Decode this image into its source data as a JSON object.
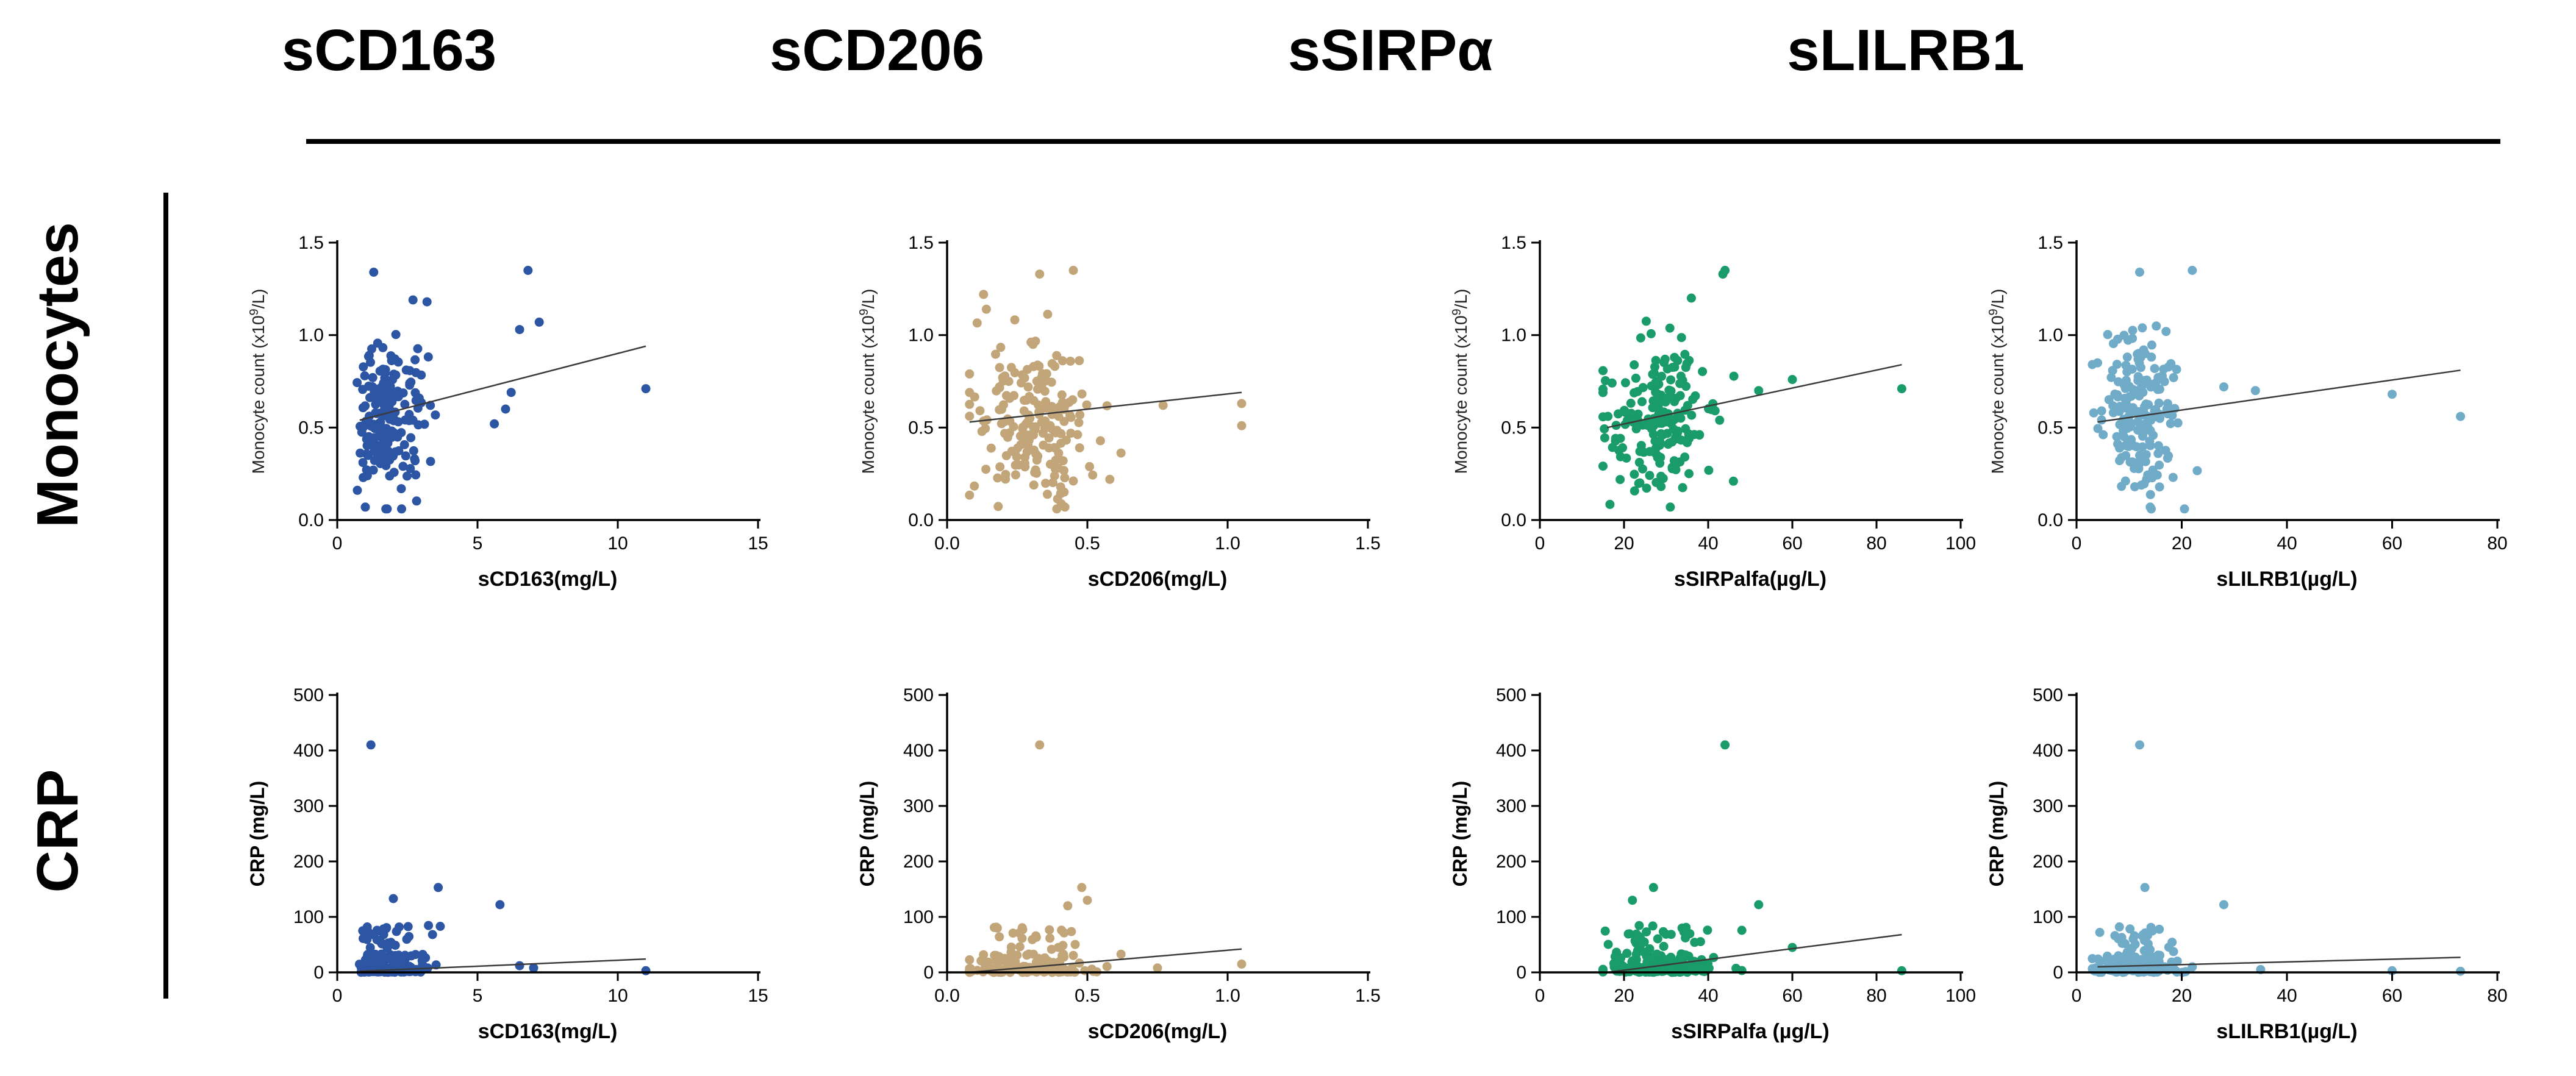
{
  "columns": [
    "sCD163",
    "sCD206",
    "sSIRPα",
    "sLILRB1"
  ],
  "rows": [
    "Monocytes",
    "CRP"
  ],
  "chart_data": [
    {
      "id": "p11",
      "type": "scatter",
      "row": 0,
      "col": 0,
      "color": "#2c55a4",
      "xlabel": "sCD163(mg/L)",
      "ylabel": "Monocyte count (x10⁹/L)",
      "ylabel_base": "Monocyte count (x10",
      "ylabel_sup": "9",
      "ylabel_tail": "/L)",
      "xlim": [
        0,
        15
      ],
      "xticks": [
        "0",
        "5",
        "10",
        "15"
      ],
      "ylim": [
        0,
        1.5
      ],
      "yticks": [
        "0.0",
        "0.5",
        "1.0",
        "1.5"
      ],
      "trend": [
        [
          0.8,
          0.54
        ],
        [
          11,
          0.94
        ]
      ],
      "seed": 11,
      "gen": {
        "xmode": "gamma",
        "xmean": 2.2,
        "xsd": 0.9,
        "xmin": 0.7,
        "xmax": 5.5,
        "ymean": 0.55,
        "ysd": 0.2,
        "ymin": 0.06,
        "ymax": 1.22
      },
      "points": [
        [
          6.8,
          1.35
        ],
        [
          1.3,
          1.34
        ],
        [
          7.2,
          1.07
        ],
        [
          6.5,
          1.03
        ],
        [
          11,
          0.71
        ],
        [
          6,
          0.6
        ],
        [
          5.6,
          0.52
        ],
        [
          6.2,
          0.69
        ],
        [
          1,
          0.07
        ],
        [
          2.7,
          1.19
        ],
        [
          3.2,
          1.18
        ]
      ]
    },
    {
      "id": "p12",
      "type": "scatter",
      "row": 0,
      "col": 1,
      "color": "#c2a67a",
      "xlabel": "sCD206(mg/L)",
      "ylabel": "Monocyte count (x10⁹/L)",
      "ylabel_base": "Monocyte count (x10",
      "ylabel_sup": "9",
      "ylabel_tail": "/L)",
      "xlim": [
        0,
        1.5
      ],
      "xticks": [
        "0.0",
        "0.5",
        "1.0",
        "1.5"
      ],
      "ylim": [
        0,
        1.5
      ],
      "yticks": [
        "0.0",
        "0.5",
        "1.0",
        "1.5"
      ],
      "trend": [
        [
          0.08,
          0.53
        ],
        [
          1.05,
          0.69
        ]
      ],
      "seed": 22,
      "gen": {
        "xmode": "normal",
        "xmean": 0.3,
        "xsd": 0.11,
        "xmin": 0.08,
        "xmax": 0.62,
        "ymean": 0.55,
        "ysd": 0.2,
        "ymin": 0.06,
        "ymax": 1.22
      },
      "points": [
        [
          0.45,
          1.35
        ],
        [
          0.33,
          1.33
        ],
        [
          1.05,
          0.51
        ],
        [
          1.05,
          0.63
        ],
        [
          0.77,
          0.62
        ],
        [
          0.58,
          0.22
        ],
        [
          0.42,
          0.07
        ],
        [
          0.13,
          1.22
        ],
        [
          0.14,
          1.14
        ]
      ]
    },
    {
      "id": "p13",
      "type": "scatter",
      "row": 0,
      "col": 2,
      "color": "#1a9b6a",
      "xlabel": "sSIRPalfa(µg/L)",
      "ylabel": "Monocyte count (x10⁹/L)",
      "ylabel_base": "Monocyte count (x10",
      "ylabel_sup": "9",
      "ylabel_tail": "/L)",
      "xlim": [
        0,
        100
      ],
      "xticks": [
        "0",
        "20",
        "40",
        "60",
        "80",
        "100"
      ],
      "ylim": [
        0,
        1.5
      ],
      "yticks": [
        "0.0",
        "0.5",
        "1.0",
        "1.5"
      ],
      "trend": [
        [
          16,
          0.5
        ],
        [
          86,
          0.84
        ]
      ],
      "seed": 33,
      "gen": {
        "xmode": "normal",
        "xmean": 28,
        "xsd": 6.5,
        "xmin": 15,
        "xmax": 48,
        "ymean": 0.55,
        "ysd": 0.2,
        "ymin": 0.06,
        "ymax": 1.22
      },
      "points": [
        [
          44,
          1.35
        ],
        [
          43.5,
          1.33
        ],
        [
          86,
          0.71
        ],
        [
          60,
          0.76
        ],
        [
          52,
          0.7
        ],
        [
          46,
          0.21
        ],
        [
          31,
          0.07
        ],
        [
          36,
          1.2
        ]
      ]
    },
    {
      "id": "p14",
      "type": "scatter",
      "row": 0,
      "col": 3,
      "color": "#70abc8",
      "xlabel": "sLILRB1(µg/L)",
      "ylabel": "Monocyte count (x10⁹/L)",
      "ylabel_base": "Monocyte count (x10",
      "ylabel_sup": "9",
      "ylabel_tail": "/L)",
      "xlim": [
        0,
        80
      ],
      "xticks": [
        "0",
        "20",
        "40",
        "60",
        "80"
      ],
      "ylim": [
        0,
        1.5
      ],
      "yticks": [
        "0.0",
        "0.5",
        "1.0",
        "1.5"
      ],
      "trend": [
        [
          4,
          0.53
        ],
        [
          73,
          0.81
        ]
      ],
      "seed": 44,
      "gen": {
        "xmode": "normal",
        "xmean": 11.5,
        "xsd": 3.5,
        "xmin": 3,
        "xmax": 24,
        "ymean": 0.55,
        "ysd": 0.2,
        "ymin": 0.06,
        "ymax": 1.22
      },
      "points": [
        [
          22,
          1.35
        ],
        [
          12,
          1.34
        ],
        [
          73,
          0.56
        ],
        [
          60,
          0.68
        ],
        [
          34,
          0.7
        ],
        [
          28,
          0.72
        ],
        [
          14,
          0.07
        ],
        [
          4,
          0.85
        ]
      ]
    },
    {
      "id": "p21",
      "type": "scatter",
      "row": 1,
      "col": 0,
      "color": "#2c55a4",
      "xlabel": "sCD163(mg/L)",
      "ylabel": "CRP (mg/L)",
      "xlim": [
        0,
        15
      ],
      "xticks": [
        "0",
        "5",
        "10",
        "15"
      ],
      "ylim": [
        0,
        500
      ],
      "yticks": [
        "0",
        "100",
        "200",
        "300",
        "400",
        "500"
      ],
      "trend": [
        [
          0.8,
          2
        ],
        [
          11,
          24
        ]
      ],
      "seed": 55,
      "gen": {
        "xmode": "gamma",
        "xmean": 2.2,
        "xsd": 0.9,
        "xmin": 0.7,
        "xmax": 5.5,
        "ymode": "crp"
      },
      "points": [
        [
          1.2,
          410
        ],
        [
          3.6,
          153
        ],
        [
          5.8,
          122
        ],
        [
          2,
          133
        ],
        [
          6.5,
          12
        ],
        [
          7,
          8
        ],
        [
          11,
          3
        ]
      ]
    },
    {
      "id": "p22",
      "type": "scatter",
      "row": 1,
      "col": 1,
      "color": "#c2a67a",
      "xlabel": "sCD206(mg/L)",
      "ylabel": "CRP (mg/L)",
      "xlim": [
        0,
        1.5
      ],
      "xticks": [
        "0.0",
        "0.5",
        "1.0",
        "1.5"
      ],
      "ylim": [
        0,
        500
      ],
      "yticks": [
        "0",
        "100",
        "200",
        "300",
        "400",
        "500"
      ],
      "trend": [
        [
          0.08,
          0
        ],
        [
          1.05,
          42
        ]
      ],
      "seed": 66,
      "gen": {
        "xmode": "normal",
        "xmean": 0.3,
        "xsd": 0.11,
        "xmin": 0.08,
        "xmax": 0.62,
        "ymode": "crp"
      },
      "points": [
        [
          0.33,
          410
        ],
        [
          0.48,
          153
        ],
        [
          0.5,
          130
        ],
        [
          0.43,
          120
        ],
        [
          1.05,
          15
        ],
        [
          0.75,
          8
        ]
      ]
    },
    {
      "id": "p23",
      "type": "scatter",
      "row": 1,
      "col": 2,
      "color": "#1a9b6a",
      "xlabel": "sSIRPalfa (µg/L)",
      "ylabel": "CRP (mg/L)",
      "xlim": [
        0,
        100
      ],
      "xticks": [
        "0",
        "20",
        "40",
        "60",
        "80",
        "100"
      ],
      "ylim": [
        0,
        500
      ],
      "yticks": [
        "0",
        "100",
        "200",
        "300",
        "400",
        "500"
      ],
      "trend": [
        [
          16,
          0
        ],
        [
          86,
          68
        ]
      ],
      "seed": 77,
      "gen": {
        "xmode": "normal",
        "xmean": 28,
        "xsd": 6.5,
        "xmin": 15,
        "xmax": 48,
        "ymode": "crp"
      },
      "points": [
        [
          44,
          410
        ],
        [
          27,
          153
        ],
        [
          52,
          122
        ],
        [
          22,
          130
        ],
        [
          60,
          45
        ],
        [
          86,
          3
        ]
      ]
    },
    {
      "id": "p24",
      "type": "scatter",
      "row": 1,
      "col": 3,
      "color": "#70abc8",
      "xlabel": "sLILRB1(µg/L)",
      "ylabel": "CRP (mg/L)",
      "xlim": [
        0,
        80
      ],
      "xticks": [
        "0",
        "20",
        "40",
        "60",
        "80"
      ],
      "ylim": [
        0,
        500
      ],
      "yticks": [
        "0",
        "100",
        "200",
        "300",
        "400",
        "500"
      ],
      "trend": [
        [
          4,
          10
        ],
        [
          73,
          27
        ]
      ],
      "seed": 88,
      "gen": {
        "xmode": "normal",
        "xmean": 11.5,
        "xsd": 3.5,
        "xmin": 3,
        "xmax": 24,
        "ymode": "crp"
      },
      "points": [
        [
          12,
          410
        ],
        [
          13,
          153
        ],
        [
          28,
          122
        ],
        [
          35,
          5
        ],
        [
          60,
          3
        ],
        [
          73,
          2
        ],
        [
          22,
          10
        ]
      ]
    }
  ]
}
